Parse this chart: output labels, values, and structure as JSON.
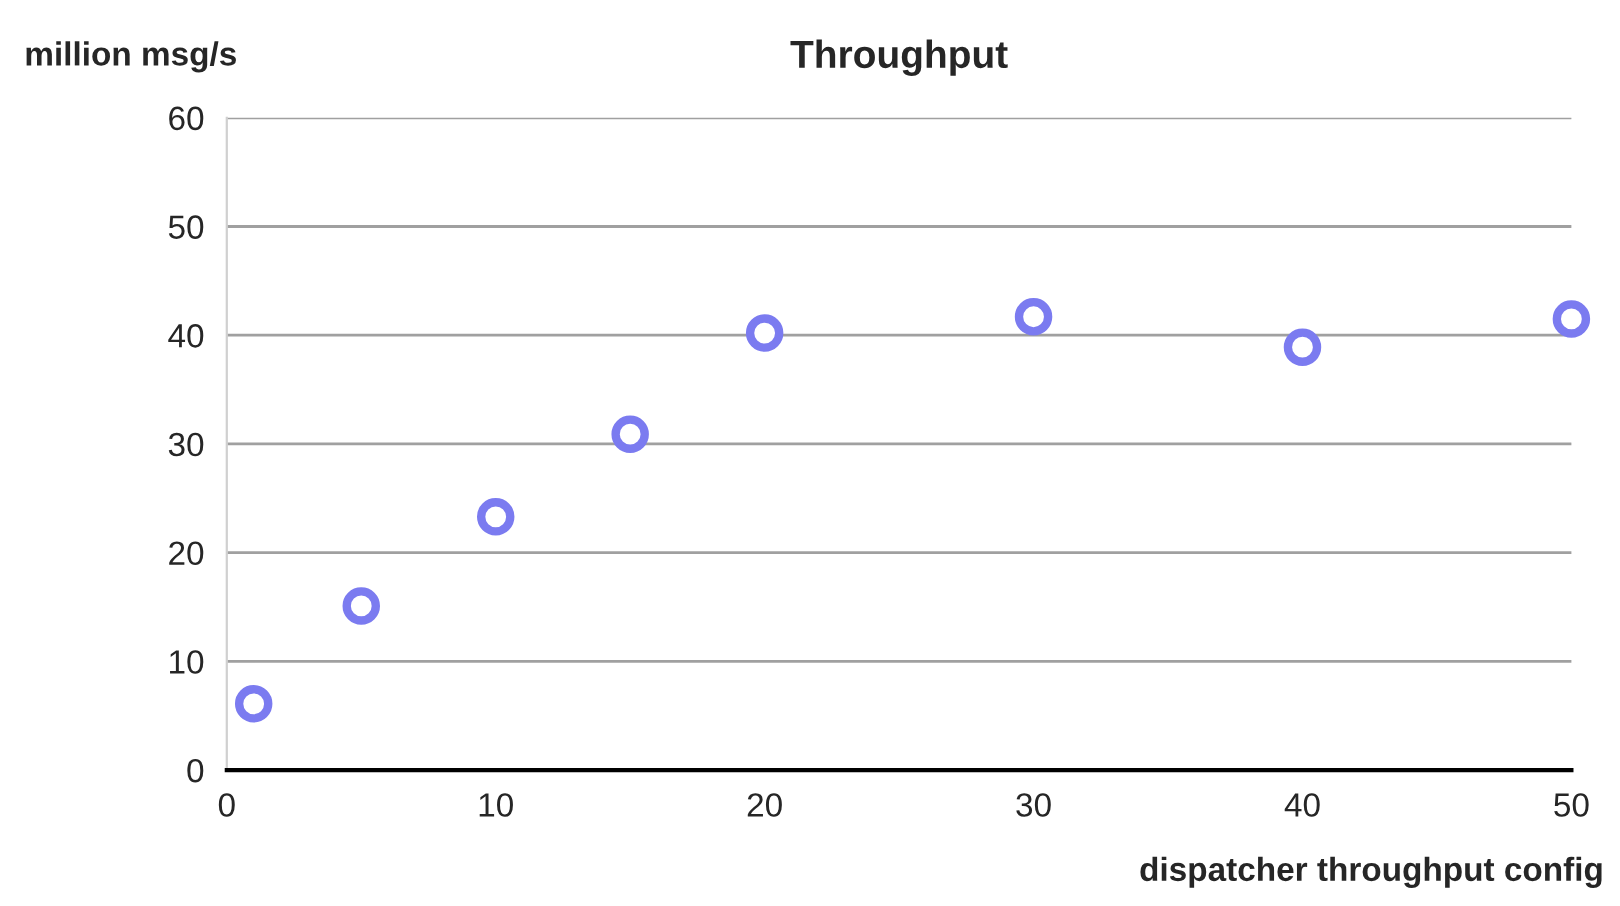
{
  "chart_data": {
    "type": "scatter",
    "title": "Throughput",
    "xlabel": "dispatcher throughput config",
    "ylabel": "million msg/s",
    "x": [
      1,
      5,
      10,
      15,
      20,
      30,
      40,
      50
    ],
    "series": [
      {
        "color": "#7b7bf0",
        "values": [
          6.1,
          15.1,
          23.3,
          30.9,
          40.2,
          41.7,
          38.9,
          41.5
        ]
      }
    ],
    "xlim": [
      0,
      50
    ],
    "xticks": [
      0,
      10,
      20,
      30,
      40,
      50
    ],
    "ylim": [
      0,
      60
    ],
    "yticks": [
      0,
      10,
      20,
      30,
      40,
      50,
      60
    ],
    "grid": "y",
    "marker": "circle"
  }
}
